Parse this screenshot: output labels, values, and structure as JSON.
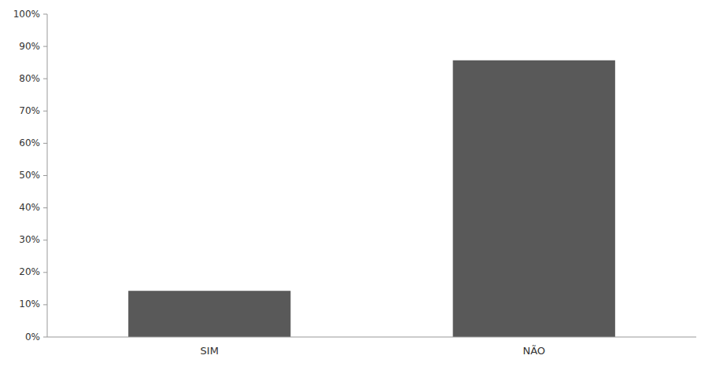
{
  "chart_data": {
    "type": "bar",
    "categories": [
      "SIM",
      "NÃO"
    ],
    "values": [
      0.143,
      0.857
    ],
    "color": "#595959",
    "ylim": [
      0,
      1.0
    ],
    "yticks": [
      {
        "value": 0.0,
        "label": "0%"
      },
      {
        "value": 0.1,
        "label": "10%"
      },
      {
        "value": 0.2,
        "label": "20%"
      },
      {
        "value": 0.3,
        "label": "30%"
      },
      {
        "value": 0.4,
        "label": "40%"
      },
      {
        "value": 0.5,
        "label": "50%"
      },
      {
        "value": 0.6,
        "label": "60%"
      },
      {
        "value": 0.7,
        "label": "70%"
      },
      {
        "value": 0.8,
        "label": "80%"
      },
      {
        "value": 0.9,
        "label": "90%"
      },
      {
        "value": 1.0,
        "label": "100%"
      }
    ],
    "grid": false
  }
}
